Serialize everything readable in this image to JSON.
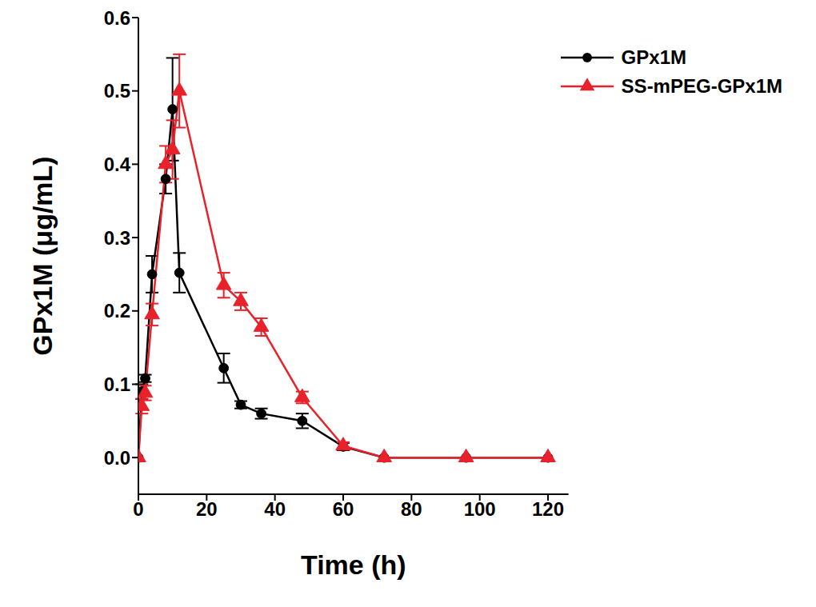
{
  "chart_data": {
    "type": "line",
    "x_label": "Time (h)",
    "y_label": "GPx1M (μg/mL)",
    "x": [
      0,
      1,
      2,
      4,
      8,
      10,
      12,
      25,
      30,
      36,
      48,
      60,
      72,
      96,
      120
    ],
    "series": [
      {
        "name": "GPx1M",
        "color": "#000000",
        "marker": "circle",
        "values": [
          0,
          0.09,
          0.108,
          0.25,
          0.38,
          0.475,
          0.252,
          0.122,
          0.072,
          0.06,
          0.05,
          0.015,
          0,
          0,
          0
        ],
        "errors": [
          0,
          0.01,
          0.005,
          0.025,
          0.02,
          0.07,
          0.027,
          0.02,
          0.005,
          0.007,
          0.01,
          0.005,
          0,
          0,
          0
        ]
      },
      {
        "name": "SS-mPEG-GPx1M",
        "color": "#e8212b",
        "marker": "triangle",
        "values": [
          0,
          0.07,
          0.088,
          0.195,
          0.4,
          0.42,
          0.5,
          0.235,
          0.213,
          0.178,
          0.082,
          0.016,
          0,
          0,
          0
        ],
        "errors": [
          0,
          0.01,
          0.01,
          0.015,
          0.025,
          0.04,
          0.05,
          0.017,
          0.012,
          0.012,
          0.008,
          0.005,
          0,
          0,
          0
        ]
      }
    ],
    "xlim": [
      0,
      126
    ],
    "xticks": [
      0,
      20,
      40,
      60,
      80,
      100,
      120
    ],
    "ylim": [
      -0.05,
      0.6
    ],
    "yticks": [
      {
        "value": 0,
        "label": "0.0"
      },
      {
        "value": 0.1,
        "label": "0.1"
      },
      {
        "value": 0.2,
        "label": "0.2"
      },
      {
        "value": 0.3,
        "label": "0.3"
      },
      {
        "value": 0.4,
        "label": "0.4"
      },
      {
        "value": 0.5,
        "label": "0.5"
      },
      {
        "value": 0.6,
        "label": "0.6"
      }
    ],
    "grid": false,
    "legend": "upper right"
  }
}
